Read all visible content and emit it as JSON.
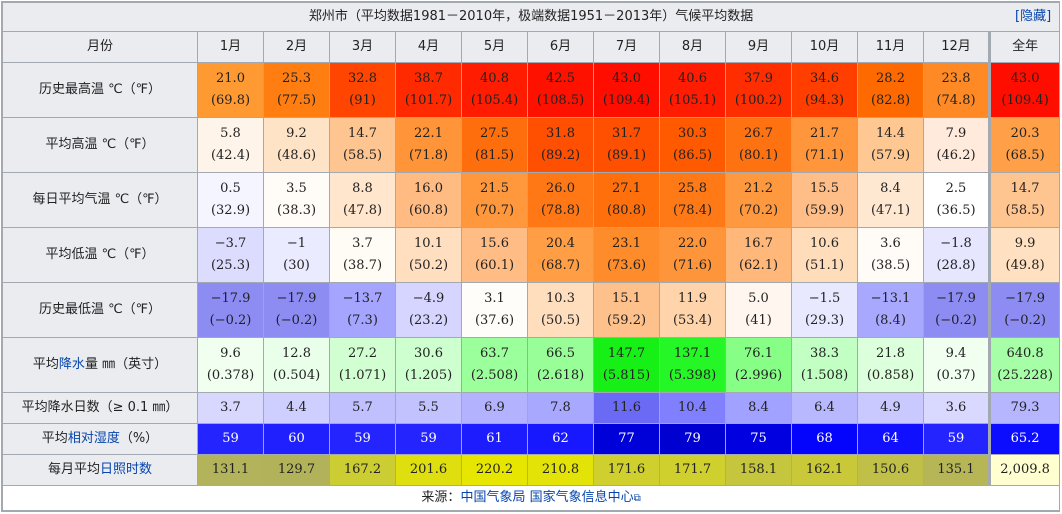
{
  "title": "郑州市（平均数据1981－2010年，极端数据1951－2013年）气候平均数据",
  "hide_link": "[隐藏]",
  "header": {
    "label": "月份",
    "months": [
      "1月",
      "2月",
      "3月",
      "4月",
      "5月",
      "6月",
      "7月",
      "8月",
      "9月",
      "10月",
      "11月",
      "12月"
    ],
    "year": "全年"
  },
  "rows": [
    {
      "label_parts": [
        {
          "text": "历史最高温 ℃（℉）",
          "link": false
        }
      ],
      "tall": true,
      "cells": [
        {
          "v": "21.0",
          "f": "(69.8)",
          "bg": "#ff9932"
        },
        {
          "v": "25.3",
          "f": "(77.5)",
          "bg": "#ff7d11"
        },
        {
          "v": "32.8",
          "f": "(91)",
          "bg": "#ff4500"
        },
        {
          "v": "38.7",
          "f": "(101.7)",
          "bg": "#ff2a00"
        },
        {
          "v": "40.8",
          "f": "(105.4)",
          "bg": "#ff1c00"
        },
        {
          "v": "42.5",
          "f": "(108.5)",
          "bg": "#ff1100"
        },
        {
          "v": "43.0",
          "f": "(109.4)",
          "bg": "#ff0e00"
        },
        {
          "v": "40.6",
          "f": "(105.1)",
          "bg": "#ff1c00"
        },
        {
          "v": "37.9",
          "f": "(100.2)",
          "bg": "#ff2e00"
        },
        {
          "v": "34.6",
          "f": "(94.3)",
          "bg": "#ff3e00"
        },
        {
          "v": "28.2",
          "f": "(82.8)",
          "bg": "#ff6a00"
        },
        {
          "v": "23.8",
          "f": "(74.8)",
          "bg": "#ff8a25"
        },
        {
          "v": "43.0",
          "f": "(109.4)",
          "bg": "#ff0e00"
        }
      ]
    },
    {
      "label_parts": [
        {
          "text": "平均高温 ℃（℉）",
          "link": false
        }
      ],
      "tall": true,
      "cells": [
        {
          "v": "5.8",
          "f": "(42.4)",
          "bg": "#fff4ea"
        },
        {
          "v": "9.2",
          "f": "(48.6)",
          "bg": "#ffe3c6"
        },
        {
          "v": "14.7",
          "f": "(58.5)",
          "bg": "#ffc590"
        },
        {
          "v": "22.1",
          "f": "(71.8)",
          "bg": "#ff9438"
        },
        {
          "v": "27.5",
          "f": "(81.5)",
          "bg": "#ff6e0c"
        },
        {
          "v": "31.8",
          "f": "(89.2)",
          "bg": "#ff4f00"
        },
        {
          "v": "31.7",
          "f": "(89.1)",
          "bg": "#ff4f00"
        },
        {
          "v": "30.3",
          "f": "(86.5)",
          "bg": "#ff5a00"
        },
        {
          "v": "26.7",
          "f": "(80.1)",
          "bg": "#ff7211"
        },
        {
          "v": "21.7",
          "f": "(71.1)",
          "bg": "#ff963c"
        },
        {
          "v": "14.4",
          "f": "(57.9)",
          "bg": "#ffc893"
        },
        {
          "v": "7.9",
          "f": "(46.2)",
          "bg": "#ffeadb"
        },
        {
          "v": "20.3",
          "f": "(68.5)",
          "bg": "#ffa048"
        }
      ]
    },
    {
      "label_parts": [
        {
          "text": "每日平均气温 ℃（℉）",
          "link": false
        }
      ],
      "tall": true,
      "cells": [
        {
          "v": "0.5",
          "f": "(32.9)",
          "bg": "#f5f5ff"
        },
        {
          "v": "3.5",
          "f": "(38.3)",
          "bg": "#fffcf7"
        },
        {
          "v": "8.8",
          "f": "(47.8)",
          "bg": "#ffe6cc"
        },
        {
          "v": "16.0",
          "f": "(60.8)",
          "bg": "#ffbb82"
        },
        {
          "v": "21.5",
          "f": "(70.7)",
          "bg": "#ff973d"
        },
        {
          "v": "26.0",
          "f": "(78.8)",
          "bg": "#ff7815"
        },
        {
          "v": "27.1",
          "f": "(80.8)",
          "bg": "#ff700d"
        },
        {
          "v": "25.8",
          "f": "(78.4)",
          "bg": "#ff7916"
        },
        {
          "v": "21.2",
          "f": "(70.2)",
          "bg": "#ff993f"
        },
        {
          "v": "15.5",
          "f": "(59.9)",
          "bg": "#ffbe87"
        },
        {
          "v": "8.4",
          "f": "(47.1)",
          "bg": "#ffe8d1"
        },
        {
          "v": "2.5",
          "f": "(36.5)",
          "bg": "#ffffff"
        },
        {
          "v": "14.7",
          "f": "(58.5)",
          "bg": "#ffc590"
        }
      ]
    },
    {
      "label_parts": [
        {
          "text": "平均低温 ℃（℉）",
          "link": false
        }
      ],
      "tall": true,
      "cells": [
        {
          "v": "−3.7",
          "f": "(25.3)",
          "bg": "#dcdcff"
        },
        {
          "v": "−1",
          "f": "(30)",
          "bg": "#ebebff"
        },
        {
          "v": "3.7",
          "f": "(38.7)",
          "bg": "#fffbf5"
        },
        {
          "v": "10.1",
          "f": "(50.2)",
          "bg": "#ffdfbf"
        },
        {
          "v": "15.6",
          "f": "(60.1)",
          "bg": "#ffbd85"
        },
        {
          "v": "20.4",
          "f": "(68.7)",
          "bg": "#ff9e45"
        },
        {
          "v": "23.1",
          "f": "(73.6)",
          "bg": "#ff8c2a"
        },
        {
          "v": "22.0",
          "f": "(71.6)",
          "bg": "#ff953a"
        },
        {
          "v": "16.7",
          "f": "(62.1)",
          "bg": "#ffb77a"
        },
        {
          "v": "10.6",
          "f": "(51.1)",
          "bg": "#ffdcba"
        },
        {
          "v": "3.6",
          "f": "(38.5)",
          "bg": "#fffbf6"
        },
        {
          "v": "−1.8",
          "f": "(28.8)",
          "bg": "#e6e6ff"
        },
        {
          "v": "9.9",
          "f": "(49.8)",
          "bg": "#ffe0c1"
        }
      ]
    },
    {
      "label_parts": [
        {
          "text": "历史最低温 ℃（℉）",
          "link": false
        }
      ],
      "tall": true,
      "cells": [
        {
          "v": "−17.9",
          "f": "(−0.2)",
          "bg": "#8c8cf2"
        },
        {
          "v": "−17.9",
          "f": "(−0.2)",
          "bg": "#8c8cf2"
        },
        {
          "v": "−13.7",
          "f": "(7.3)",
          "bg": "#a5a5ff"
        },
        {
          "v": "−4.9",
          "f": "(23.2)",
          "bg": "#d5d5ff"
        },
        {
          "v": "3.1",
          "f": "(37.6)",
          "bg": "#fffdfa"
        },
        {
          "v": "10.3",
          "f": "(50.5)",
          "bg": "#ffdebd"
        },
        {
          "v": "15.1",
          "f": "(59.2)",
          "bg": "#ffc18b"
        },
        {
          "v": "11.9",
          "f": "(53.4)",
          "bg": "#ffd4ab"
        },
        {
          "v": "5.0",
          "f": "(41)",
          "bg": "#fff7ef"
        },
        {
          "v": "−1.5",
          "f": "(29.3)",
          "bg": "#e8e8ff"
        },
        {
          "v": "−13.1",
          "f": "(8.4)",
          "bg": "#a8a8ff"
        },
        {
          "v": "−17.9",
          "f": "(−0.2)",
          "bg": "#8c8cf2"
        },
        {
          "v": "−17.9",
          "f": "(−0.2)",
          "bg": "#8c8cf2"
        }
      ]
    },
    {
      "label_parts": [
        {
          "text": "平均",
          "link": false
        },
        {
          "text": "降水",
          "link": true
        },
        {
          "text": "量 ㎜（英寸）",
          "link": false
        }
      ],
      "tall": true,
      "cells": [
        {
          "v": "9.6",
          "f": "(0.378)",
          "bg": "#f0fff0"
        },
        {
          "v": "12.8",
          "f": "(0.504)",
          "bg": "#e9ffe9"
        },
        {
          "v": "27.2",
          "f": "(1.071)",
          "bg": "#d2ffd2"
        },
        {
          "v": "30.6",
          "f": "(1.205)",
          "bg": "#ceffce"
        },
        {
          "v": "63.7",
          "f": "(2.508)",
          "bg": "#9bff9b"
        },
        {
          "v": "66.5",
          "f": "(2.618)",
          "bg": "#98ff98"
        },
        {
          "v": "147.7",
          "f": "(5.815)",
          "bg": "#16f016"
        },
        {
          "v": "137.1",
          "f": "(5.398)",
          "bg": "#25f625"
        },
        {
          "v": "76.1",
          "f": "(2.996)",
          "bg": "#87ff87"
        },
        {
          "v": "38.3",
          "f": "(1.508)",
          "bg": "#c2ffc2"
        },
        {
          "v": "21.8",
          "f": "(0.858)",
          "bg": "#dcffdc"
        },
        {
          "v": "9.4",
          "f": "(0.37)",
          "bg": "#f0fff0"
        },
        {
          "v": "640.8",
          "f": "(25.228)",
          "bg": "#a6ffa6"
        }
      ]
    },
    {
      "label_parts": [
        {
          "text": "平均降水日数（≥ 0.1 ㎜）",
          "link": false
        }
      ],
      "tall": false,
      "cells": [
        {
          "v": "3.7",
          "bg": "#d8d8ff"
        },
        {
          "v": "4.4",
          "bg": "#cfcfff"
        },
        {
          "v": "5.7",
          "bg": "#c0c0ff"
        },
        {
          "v": "5.5",
          "bg": "#c2c2ff"
        },
        {
          "v": "6.9",
          "bg": "#b2b2ff"
        },
        {
          "v": "7.8",
          "bg": "#a8a8ff"
        },
        {
          "v": "11.6",
          "bg": "#6a6af5"
        },
        {
          "v": "10.4",
          "bg": "#8080ff"
        },
        {
          "v": "8.4",
          "bg": "#a1a1ff"
        },
        {
          "v": "6.4",
          "bg": "#b8b8ff"
        },
        {
          "v": "4.9",
          "bg": "#c9c9ff"
        },
        {
          "v": "3.6",
          "bg": "#d9d9ff"
        },
        {
          "v": "79.3",
          "bg": "#b6b6ff"
        }
      ]
    },
    {
      "label_parts": [
        {
          "text": "平均",
          "link": false
        },
        {
          "text": "相对湿度",
          "link": true
        },
        {
          "text": "（%）",
          "link": false
        }
      ],
      "tall": false,
      "cells": [
        {
          "v": "59",
          "bg": "#2424ff",
          "light": true
        },
        {
          "v": "60",
          "bg": "#2020ff",
          "light": true
        },
        {
          "v": "59",
          "bg": "#2424ff",
          "light": true
        },
        {
          "v": "59",
          "bg": "#2424ff",
          "light": true
        },
        {
          "v": "61",
          "bg": "#1c1cff",
          "light": true
        },
        {
          "v": "62",
          "bg": "#1818ff",
          "light": true
        },
        {
          "v": "77",
          "bg": "#0000d8",
          "light": true
        },
        {
          "v": "79",
          "bg": "#0000d0",
          "light": true
        },
        {
          "v": "75",
          "bg": "#0000e0",
          "light": true
        },
        {
          "v": "68",
          "bg": "#0404fc",
          "light": true
        },
        {
          "v": "64",
          "bg": "#1010ff",
          "light": true
        },
        {
          "v": "59",
          "bg": "#2424ff",
          "light": true
        },
        {
          "v": "65.2",
          "bg": "#0c0cff",
          "light": true
        }
      ]
    },
    {
      "label_parts": [
        {
          "text": "每月平均",
          "link": false
        },
        {
          "text": "日照时数",
          "link": true
        }
      ],
      "tall": false,
      "cells": [
        {
          "v": "131.1",
          "bg": "#b3b35c"
        },
        {
          "v": "129.7",
          "bg": "#b2b25a"
        },
        {
          "v": "167.2",
          "bg": "#cccc33"
        },
        {
          "v": "201.6",
          "bg": "#dfdf10"
        },
        {
          "v": "220.2",
          "bg": "#e6e600"
        },
        {
          "v": "210.8",
          "bg": "#e3e308"
        },
        {
          "v": "171.6",
          "bg": "#cfcf2e"
        },
        {
          "v": "171.7",
          "bg": "#cfcf2e"
        },
        {
          "v": "158.1",
          "bg": "#c5c53e"
        },
        {
          "v": "162.1",
          "bg": "#c8c839"
        },
        {
          "v": "150.6",
          "bg": "#c0c048"
        },
        {
          "v": "135.1",
          "bg": "#b6b656"
        },
        {
          "v": "2,009.8",
          "bg": "#ffffd0"
        }
      ]
    }
  ],
  "source": {
    "prefix": "来源：",
    "link1": "中国气象局",
    "link2": "国家气象信息中心"
  }
}
